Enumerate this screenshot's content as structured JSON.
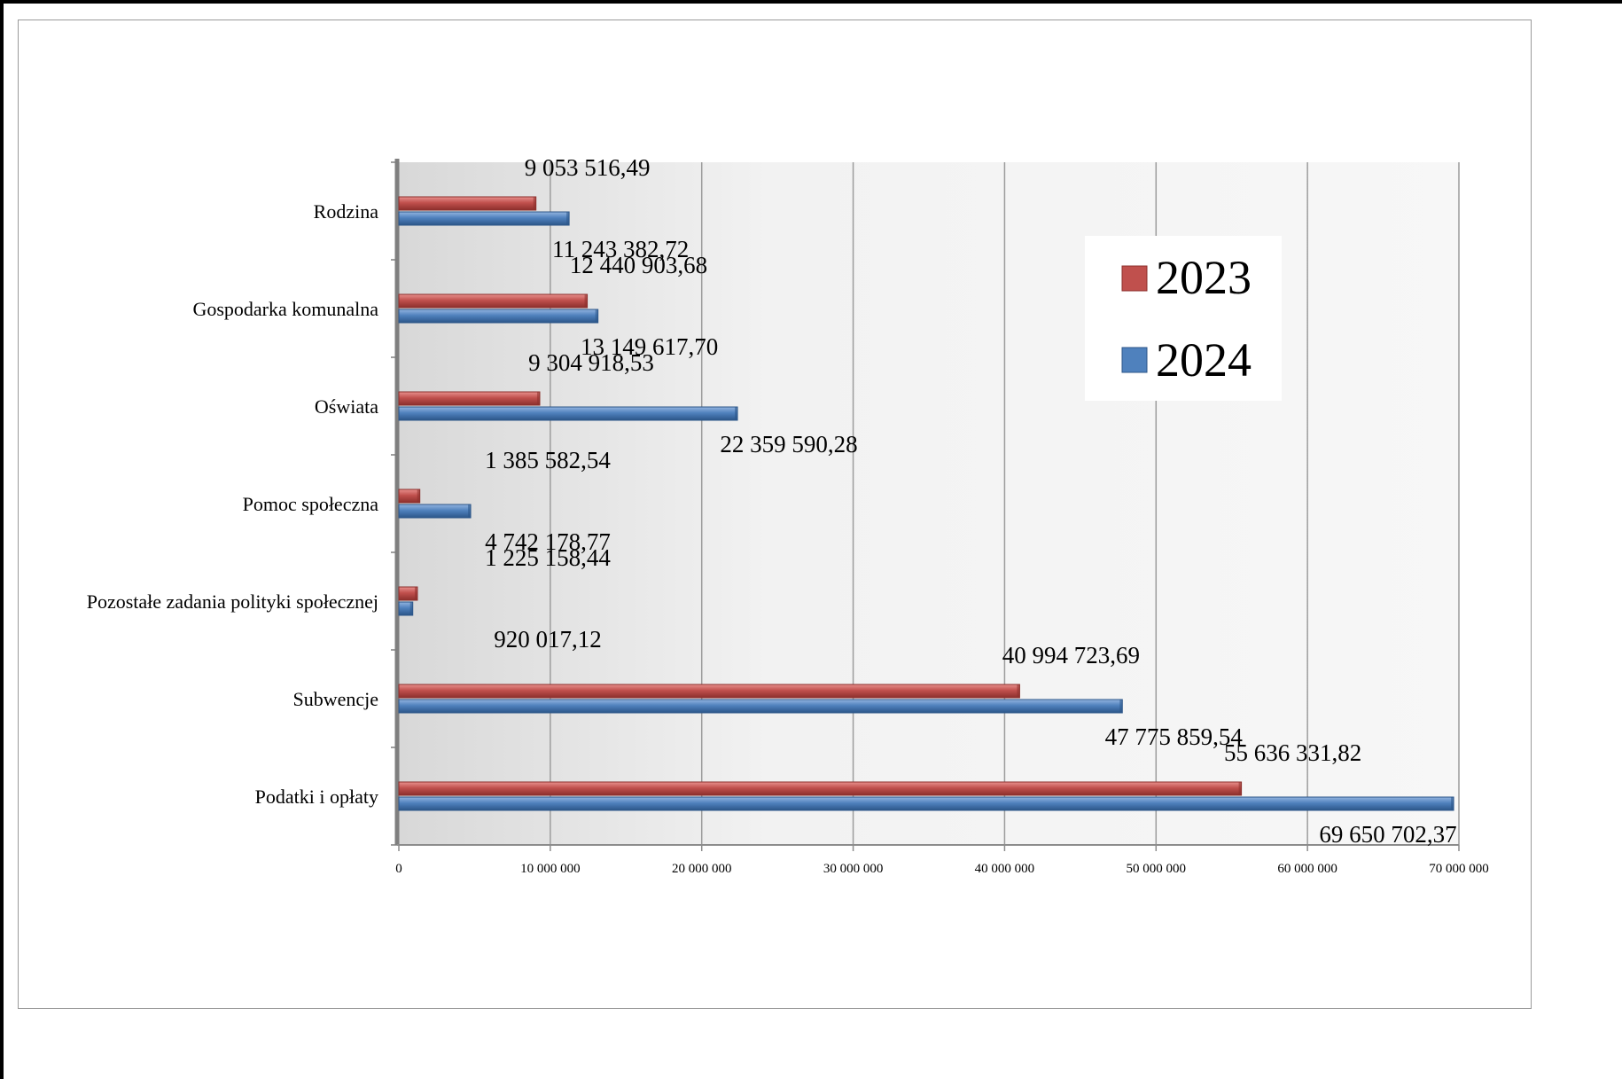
{
  "chart_data": {
    "type": "bar",
    "orientation": "horizontal",
    "categories": [
      "Rodzina",
      "Gospodarka komunalna",
      "Oświata",
      "Pomoc społeczna",
      "Pozostałe zadania  polityki społecznej",
      "Subwencje",
      "Podatki i opłaty"
    ],
    "series": [
      {
        "name": "2023",
        "color": "#c0504d",
        "values": [
          9053516.49,
          12440903.68,
          9304918.53,
          1385582.54,
          1225158.44,
          40994723.69,
          55636331.82
        ],
        "labels": [
          "9 053 516,49",
          "12 440 903,68",
          "9 304 918,53",
          "1 385 582,54",
          "1 225 158,44",
          "40 994 723,69",
          "55 636 331,82"
        ]
      },
      {
        "name": "2024",
        "color": "#4f81bd",
        "values": [
          11243382.72,
          13149617.7,
          22359590.28,
          4742178.77,
          920017.12,
          47775859.54,
          69650702.37
        ],
        "labels": [
          "11 243 382,72",
          "13 149 617,70",
          "22 359 590,28",
          "4 742 178,77",
          "920 017,12",
          "47 775 859,54",
          "69 650 702,37"
        ]
      }
    ],
    "xlim": [
      0,
      70000000
    ],
    "xticks": [
      0,
      10000000,
      20000000,
      30000000,
      40000000,
      50000000,
      60000000,
      70000000
    ],
    "xtick_labels": [
      "0",
      "10 000 000",
      "20 000 000",
      "30 000 000",
      "40 000 000",
      "50 000 000",
      "60 000 000",
      "70 000 000"
    ],
    "grid": true,
    "legend_position": "top-right",
    "title": "",
    "xlabel": "",
    "ylabel": ""
  }
}
